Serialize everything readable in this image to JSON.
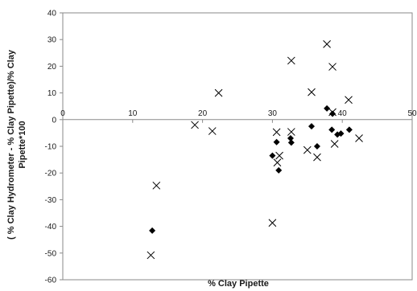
{
  "chart_data": {
    "type": "scatter",
    "title": "",
    "xlabel": "% Clay Pipette",
    "ylabel_lines": [
      "( % Clay Hydrometer - % Clay Pipette)/% Clay",
      "Pipette*100"
    ],
    "xlim": [
      0,
      50
    ],
    "ylim": [
      -60,
      40
    ],
    "x_ticks": [
      "0",
      "10",
      "20",
      "30",
      "40",
      "50"
    ],
    "y_ticks": [
      "40",
      "30",
      "20",
      "10",
      "0",
      "-10",
      "-20",
      "-30",
      "-40",
      "-50",
      "-60"
    ],
    "grid": false,
    "legend": "none",
    "series": [
      {
        "marker": "diamond",
        "color": "#000000",
        "points": [
          [
            12.8,
            -41.6
          ],
          [
            30.0,
            -13.5
          ],
          [
            30.6,
            -8.4
          ],
          [
            30.9,
            -19.0
          ],
          [
            32.6,
            -7.0
          ],
          [
            32.7,
            -8.6
          ],
          [
            35.6,
            -2.5
          ],
          [
            36.4,
            -10.0
          ],
          [
            37.8,
            4.2
          ],
          [
            38.5,
            -3.8
          ],
          [
            38.6,
            2.2
          ],
          [
            39.3,
            -5.6
          ],
          [
            39.8,
            -5.2
          ],
          [
            41.0,
            -3.8
          ]
        ]
      },
      {
        "marker": "x",
        "color": "#000000",
        "points": [
          [
            12.6,
            -50.8
          ],
          [
            13.4,
            -24.7
          ],
          [
            18.9,
            -2.0
          ],
          [
            21.4,
            -4.3
          ],
          [
            22.3,
            10.0
          ],
          [
            30.0,
            -38.7
          ],
          [
            30.6,
            -4.7
          ],
          [
            30.7,
            -16.1
          ],
          [
            31.0,
            -13.5
          ],
          [
            32.7,
            22.1
          ],
          [
            32.7,
            -4.6
          ],
          [
            35.0,
            -11.4
          ],
          [
            35.6,
            10.3
          ],
          [
            36.4,
            -14.1
          ],
          [
            37.8,
            28.3
          ],
          [
            38.6,
            19.8
          ],
          [
            38.6,
            2.8
          ],
          [
            38.9,
            -9.1
          ],
          [
            40.9,
            7.4
          ],
          [
            42.4,
            -7.0
          ]
        ]
      }
    ]
  }
}
